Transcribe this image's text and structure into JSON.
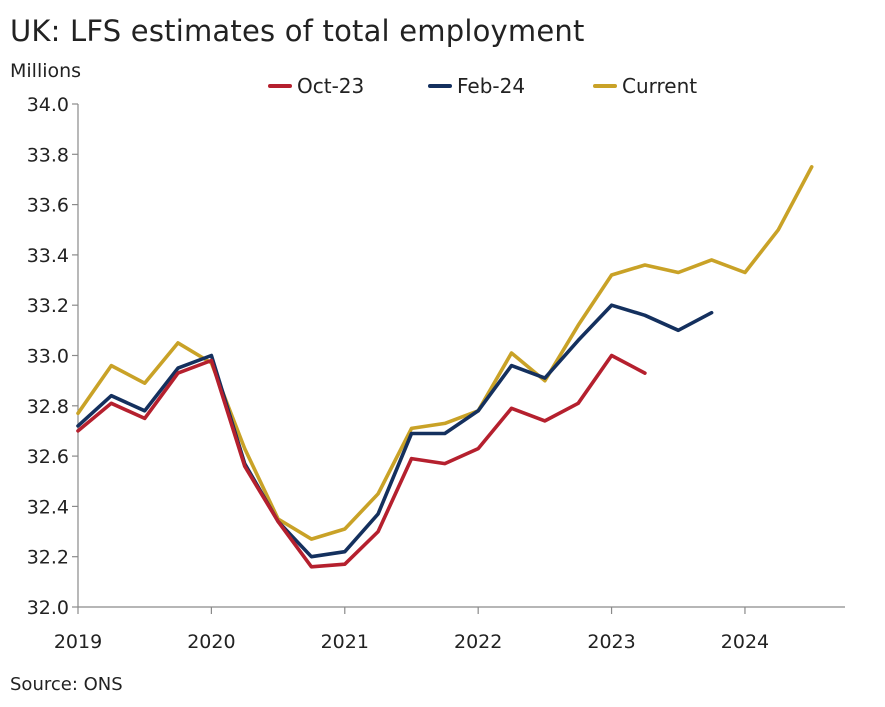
{
  "title": "UK: LFS estimates of total employment",
  "units_label": "Millions",
  "source": "Source: ONS",
  "chart_data": {
    "type": "line",
    "ylim": [
      32.0,
      34.0
    ],
    "y_ticks": [
      "32.0",
      "32.2",
      "32.4",
      "32.6",
      "32.8",
      "33.0",
      "33.2",
      "33.4",
      "33.6",
      "33.8",
      "34.0"
    ],
    "x_ticks": [
      "2019",
      "2020",
      "2021",
      "2022",
      "2023",
      "2024"
    ],
    "grid": false,
    "legend_position": "top",
    "series": [
      {
        "name": "Oct-23",
        "color": "#b5202e",
        "x": [
          2019.0,
          2019.25,
          2019.5,
          2019.75,
          2020.0,
          2020.25,
          2020.5,
          2020.75,
          2021.0,
          2021.25,
          2021.5,
          2021.75,
          2022.0,
          2022.25,
          2022.5,
          2022.75,
          2023.0,
          2023.25
        ],
        "values": [
          32.7,
          32.81,
          32.75,
          32.93,
          32.98,
          32.56,
          32.34,
          32.16,
          32.17,
          32.3,
          32.59,
          32.57,
          32.63,
          32.79,
          32.74,
          32.81,
          33.0,
          32.93
        ]
      },
      {
        "name": "Feb-24",
        "color": "#14305e",
        "x": [
          2019.0,
          2019.25,
          2019.5,
          2019.75,
          2020.0,
          2020.25,
          2020.5,
          2020.75,
          2021.0,
          2021.25,
          2021.5,
          2021.75,
          2022.0,
          2022.25,
          2022.5,
          2022.75,
          2023.0,
          2023.25,
          2023.5,
          2023.75
        ],
        "values": [
          32.72,
          32.84,
          32.78,
          32.95,
          33.0,
          32.57,
          32.34,
          32.2,
          32.22,
          32.37,
          32.69,
          32.69,
          32.78,
          32.96,
          32.91,
          33.06,
          33.2,
          33.16,
          33.1,
          33.17
        ]
      },
      {
        "name": "Current",
        "color": "#c9a227",
        "x": [
          2019.0,
          2019.25,
          2019.5,
          2019.75,
          2020.0,
          2020.25,
          2020.5,
          2020.75,
          2021.0,
          2021.25,
          2021.5,
          2021.75,
          2022.0,
          2022.25,
          2022.5,
          2022.75,
          2023.0,
          2023.25,
          2023.5,
          2023.75,
          2024.0,
          2024.25,
          2024.5
        ],
        "values": [
          32.77,
          32.96,
          32.89,
          33.05,
          32.97,
          32.63,
          32.35,
          32.27,
          32.31,
          32.45,
          32.71,
          32.73,
          32.78,
          33.01,
          32.9,
          33.12,
          33.32,
          33.36,
          33.33,
          33.38,
          33.33,
          33.5,
          33.75
        ]
      }
    ]
  }
}
